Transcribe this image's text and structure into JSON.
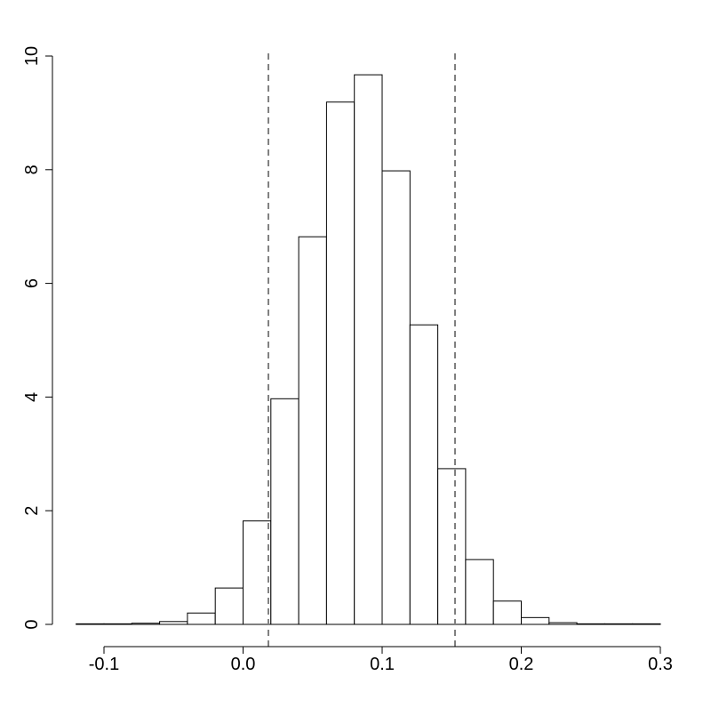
{
  "chart_data": {
    "type": "histogram",
    "bins": [
      -0.12,
      -0.1,
      -0.08,
      -0.06,
      -0.04,
      -0.02,
      0,
      0.02,
      0.04,
      0.06,
      0.08,
      0.1,
      0.12,
      0.14,
      0.16,
      0.18,
      0.2,
      0.22,
      0.24,
      0.26,
      0.28,
      0.3
    ],
    "values": [
      0.01,
      0.01,
      0.02,
      0.05,
      0.2,
      0.64,
      1.82,
      3.97,
      6.82,
      9.19,
      9.67,
      7.98,
      5.27,
      2.74,
      1.14,
      0.41,
      0.12,
      0.03,
      0.01,
      0.01,
      0.01
    ],
    "color": "#ffffff",
    "vlines": [
      0.0182,
      0.1524
    ],
    "vline_color": "#808080",
    "xlim": [
      -0.12,
      0.3
    ],
    "xticks": [
      -0.1,
      {
        "value": 0,
        "label": "0.0"
      },
      0.1,
      0.2,
      0.3
    ],
    "ylim": [
      0,
      10
    ],
    "yticks": [
      0,
      2,
      4,
      6,
      8,
      10
    ]
  }
}
